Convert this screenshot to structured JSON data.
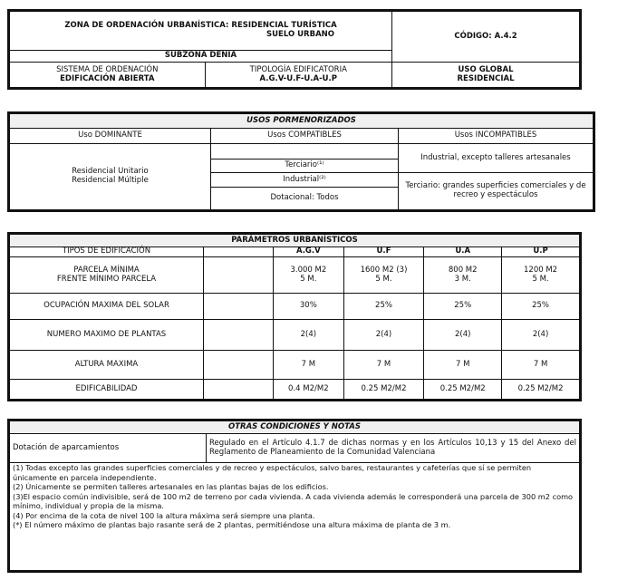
{
  "ficha": {
    "zona": "ZONA DE ORDENACIÓN URBANÍSTICA: RESIDENCIAL TURÍSTICA",
    "suelo": "SUELO URBANO",
    "codigo": "CÓDIGO: A.4.2",
    "subzona": "SUBZONA DENIA",
    "sistema_label": "SISTEMA DE ORDENACIÓN",
    "sistema_value": "EDIFICACIÓN ABIERTA",
    "tipologia_label": "TIPOLOGÍA EDIFICATORIA",
    "tipologia_value": "A.G.V-U.F-U.A-U.P",
    "uso_label": "USO GLOBAL",
    "uso_value": "RESIDENCIAL"
  },
  "usos": {
    "title": "USOS PORMENORIZADOS",
    "headers": [
      "Uso DOMINANTE",
      "Usos COMPATIBLES",
      "Usos INCOMPATIBLES"
    ],
    "dominante": [
      "Residencial Unitario",
      "Residencial Múltiple"
    ],
    "compatibles": [
      "",
      "Terciario⁽¹⁾",
      "Industrial⁽²⁾",
      "Dotacional: Todos"
    ],
    "incompatibles": [
      "Industrial, excepto talleres artesanales",
      "Terciario: grandes superficies comerciales y de recreo y espectáculos"
    ]
  },
  "parametros": {
    "title": "PARÁMETROS URBANÍSTICOS",
    "headers": [
      "TIPOS DE EDIFICACIÓN",
      "",
      "A.G.V",
      "U.F",
      "U.A",
      "U.P"
    ],
    "rows": [
      {
        "label": [
          "PARCELA MÍNIMA",
          "FRENTE MÍNIMO PARCELA"
        ],
        "values": [
          [
            "3.000 M2",
            "5 M."
          ],
          [
            "1600 M2  (3)",
            "5 M."
          ],
          [
            "800 M2",
            "3 M."
          ],
          [
            "1200 M2",
            "5 M."
          ]
        ]
      },
      {
        "label": [
          "OCUPACIÓN MAXIMA DEL SOLAR"
        ],
        "values": [
          [
            "30%"
          ],
          [
            "25%"
          ],
          [
            "25%"
          ],
          [
            "25%"
          ]
        ]
      },
      {
        "label": [
          "NUMERO MAXIMO DE PLANTAS"
        ],
        "values": [
          [
            "2(4)"
          ],
          [
            "2(4)"
          ],
          [
            "2(4)"
          ],
          [
            "2(4)"
          ]
        ]
      },
      {
        "label": [
          "ALTURA MAXIMA"
        ],
        "values": [
          [
            "7 M"
          ],
          [
            "7 M"
          ],
          [
            "7 M"
          ],
          [
            "7 M"
          ]
        ]
      },
      {
        "label": [
          "EDIFICABILIDAD"
        ],
        "values": [
          [
            "0.4  M2/M2"
          ],
          [
            "0.25 M2/M2"
          ],
          [
            "0.25 M2/M2"
          ],
          [
            "0.25 M2/M2"
          ]
        ]
      }
    ]
  },
  "otras": {
    "title": "OTRAS CONDICIONES Y NOTAS",
    "dotacion_label": "Dotación de aparcamientos",
    "dotacion_text": "Regulado en el Artículo 4.1.7 de dichas normas y en los Artículos 10,13 y 15 del Anexo del Reglamento de Planeamiento de la Comunidad Valenciana",
    "notes": [
      "(1)  Todas excepto las grandes superficies comerciales y de recreo y espectáculos, salvo bares, restaurantes y cafeterías que sí se permiten únicamente en parcela independiente.",
      "(2) Únicamente se permiten talleres artesanales en las  plantas bajas de los edificios.",
      "(3)El espacio común indivisible, será de 100 m2 de terreno por cada vivienda. A cada vivienda además le corresponderá una parcela de 300 m2 como mínimo, individual y propia de la misma.",
      "(4) Por encima de la cota de nivel 100 la altura máxima será siempre una planta.",
      "(*)  El número máximo de plantas bajo rasante será de 2 plantas, permitiéndose una altura máxima de planta de  3 m."
    ]
  }
}
